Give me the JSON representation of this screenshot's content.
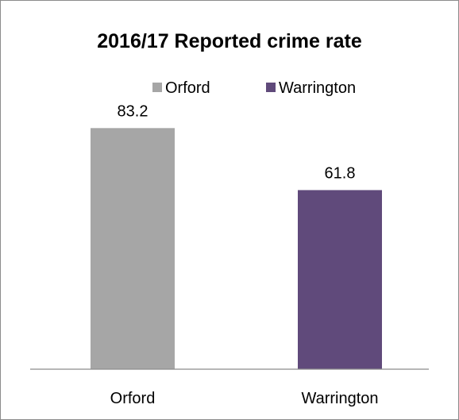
{
  "chart_data": {
    "type": "bar",
    "title": "2016/17 Reported crime rate",
    "categories": [
      "Orford",
      "Warrington"
    ],
    "values": [
      83.2,
      61.8
    ],
    "colors": [
      "#a6a6a6",
      "#604a7b"
    ],
    "legend": {
      "position": "top",
      "entries": [
        "Orford",
        "Warrington"
      ]
    },
    "data_labels": [
      "83.2",
      "61.8"
    ],
    "ylim": [
      0,
      100
    ],
    "grid": false,
    "xlabel": "",
    "ylabel": ""
  }
}
